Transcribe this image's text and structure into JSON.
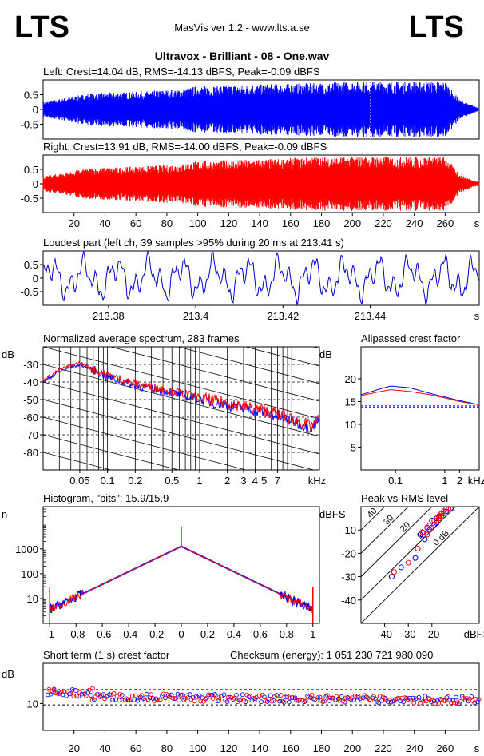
{
  "header": {
    "logo_left": "LTS",
    "logo_right": "LTS",
    "app_title": "MasVis ver 1.2 - www.lts.a.se",
    "file_title": "Ultravox - Brilliant - 08 - One.wav"
  },
  "colors": {
    "left": "#0000ff",
    "right": "#ff0000"
  },
  "chart_data": [
    {
      "id": "wave_left",
      "type": "area",
      "title": "Left: Crest=14.04 dB, RMS=-14.13 dBFS, Peak=-0.09 dBFS",
      "yticks": [
        "0.5",
        "0",
        "-0.5"
      ],
      "ylim": [
        -1,
        1
      ],
      "xlim": [
        0,
        282
      ],
      "series": [
        {
          "color": "#0000ff"
        }
      ],
      "envelope": {
        "x": [
          0,
          10,
          30,
          60,
          90,
          100,
          140,
          180,
          200,
          230,
          260,
          270,
          282
        ],
        "amp": [
          0.25,
          0.35,
          0.55,
          0.6,
          0.7,
          0.8,
          0.85,
          0.9,
          0.95,
          0.95,
          0.95,
          0.3,
          0.05
        ]
      }
    },
    {
      "id": "wave_right",
      "type": "area",
      "title": "Right: Crest=13.91 dB, RMS=-14.00 dBFS, Peak=-0.09 dBFS",
      "yticks": [
        "0.5",
        "0",
        "-0.5"
      ],
      "ylim": [
        -1,
        1
      ],
      "xlim": [
        0,
        282
      ],
      "xticks": [
        "20",
        "40",
        "60",
        "80",
        "100",
        "120",
        "140",
        "160",
        "180",
        "200",
        "220",
        "240",
        "260"
      ],
      "xunit": "s",
      "series": [
        {
          "color": "#ff0000"
        }
      ],
      "envelope": {
        "x": [
          0,
          10,
          30,
          60,
          90,
          100,
          140,
          180,
          200,
          230,
          260,
          270,
          282
        ],
        "amp": [
          0.25,
          0.35,
          0.55,
          0.6,
          0.7,
          0.8,
          0.85,
          0.95,
          0.95,
          0.95,
          0.95,
          0.3,
          0.05
        ]
      }
    },
    {
      "id": "loudest",
      "type": "line",
      "title": "Loudest part (left ch, 39 samples >95% during 20 ms at 213.41 s)",
      "yticks": [
        "0.5",
        "0",
        "-0.5"
      ],
      "ylim": [
        -1,
        1
      ],
      "xlim": [
        213.365,
        213.465
      ],
      "xticks": [
        "213.38",
        "213.4",
        "213.42",
        "213.44"
      ],
      "xunit": "s",
      "series": [
        {
          "color": "#0000cc"
        }
      ]
    },
    {
      "id": "spectrum",
      "type": "line",
      "title": "Normalized average spectrum, 283 frames",
      "ylabel": "dB",
      "yticks": [
        "-30",
        "-40",
        "-50",
        "-60",
        "-70",
        "-80"
      ],
      "ylim": [
        -90,
        -20
      ],
      "xlim": [
        0.02,
        20
      ],
      "xscale": "log",
      "xticks": [
        "0.05",
        "0.1",
        "0.2",
        "0.5",
        "1",
        "2",
        "3",
        "4",
        "5",
        "7"
      ],
      "xunit": "kHz",
      "series": [
        {
          "color": "#0000ff",
          "x": [
            0.02,
            0.03,
            0.05,
            0.07,
            0.1,
            0.2,
            0.5,
            1,
            2,
            5,
            10,
            16,
            20
          ],
          "y": [
            -40,
            -34,
            -30,
            -33,
            -37,
            -42,
            -46,
            -50,
            -53,
            -57,
            -62,
            -66,
            -62
          ]
        },
        {
          "color": "#ff0000",
          "x": [
            0.02,
            0.03,
            0.05,
            0.07,
            0.1,
            0.2,
            0.5,
            1,
            2,
            5,
            10,
            16,
            20
          ],
          "y": [
            -39,
            -33,
            -29,
            -33,
            -36,
            -41,
            -45,
            -49,
            -52,
            -56,
            -61,
            -65,
            -61
          ]
        }
      ]
    },
    {
      "id": "allpass",
      "type": "line",
      "title": "Allpassed crest factor",
      "ylabel": "dB",
      "yticks": [
        "20",
        "15",
        "10",
        "5"
      ],
      "ylim": [
        0,
        27
      ],
      "xlim": [
        0.02,
        5
      ],
      "xscale": "log",
      "xticks": [
        "0.1",
        "1",
        "2"
      ],
      "xunit": "kHz",
      "series": [
        {
          "color": "#0000ff",
          "x": [
            0.02,
            0.05,
            0.08,
            0.2,
            0.5,
            1,
            2,
            5
          ],
          "y": [
            16.5,
            17.8,
            18.4,
            18,
            16.8,
            16,
            15.2,
            14.3
          ]
        },
        {
          "color": "#ff0000",
          "x": [
            0.02,
            0.05,
            0.08,
            0.2,
            0.5,
            1,
            2,
            5
          ],
          "y": [
            16.3,
            17.2,
            17.6,
            17.2,
            16.5,
            15.8,
            15,
            14.3
          ]
        }
      ],
      "ref_lines": [
        {
          "color": "#0000ff",
          "y": 14.04
        },
        {
          "color": "#ff0000",
          "y": 13.91
        }
      ]
    },
    {
      "id": "histogram",
      "type": "line",
      "title": "Histogram, \"bits\": 15.9/15.9",
      "ylabel": "n",
      "yticks": [
        "1000",
        "100",
        "10"
      ],
      "yscale": "log",
      "ylim": [
        1,
        50000
      ],
      "xlim": [
        -1.05,
        1.05
      ],
      "xticks": [
        "-1",
        "-0.8",
        "-0.6",
        "-0.4",
        "-0.2",
        "0",
        "0.2",
        "0.4",
        "0.6",
        "0.8",
        "1"
      ],
      "series": [
        {
          "color": "#0000ff"
        },
        {
          "color": "#ff0000"
        }
      ]
    },
    {
      "id": "peak_rms",
      "type": "scatter",
      "title": "Peak vs RMS level",
      "ylabel": "dBFS",
      "yticks": [
        "-10",
        "-20",
        "-30",
        "-40"
      ],
      "ylim": [
        -50,
        0
      ],
      "xlim": [
        -50,
        0
      ],
      "xticks": [
        "-40",
        "-30",
        "-20"
      ],
      "xunit": "dBFS",
      "diag_labels": [
        "40",
        "30",
        "20",
        "10",
        "0 dB"
      ],
      "series": [
        {
          "color": "#0000ff",
          "points": [
            [
              -25,
              -12
            ],
            [
              -22,
              -9
            ],
            [
              -20,
              -6
            ],
            [
              -18,
              -5
            ],
            [
              -17,
              -4
            ],
            [
              -16,
              -3
            ],
            [
              -15,
              -2
            ],
            [
              -14,
              -2
            ],
            [
              -13,
              -1
            ],
            [
              -12,
              -1
            ],
            [
              -19,
              -8
            ],
            [
              -23,
              -14
            ],
            [
              -27,
              -22
            ],
            [
              -33,
              -26
            ],
            [
              -37,
              -30
            ],
            [
              -21,
              -10
            ],
            [
              -18,
              -7
            ]
          ]
        },
        {
          "color": "#ff0000",
          "points": [
            [
              -24,
              -11
            ],
            [
              -21,
              -8
            ],
            [
              -19,
              -6
            ],
            [
              -17,
              -4
            ],
            [
              -16,
              -3
            ],
            [
              -15,
              -2
            ],
            [
              -14,
              -1
            ],
            [
              -13,
              -1
            ],
            [
              -20,
              -9
            ],
            [
              -22,
              -12
            ],
            [
              -26,
              -18
            ],
            [
              -30,
              -24
            ],
            [
              -36,
              -28
            ],
            [
              -18,
              -6
            ],
            [
              -17,
              -5
            ],
            [
              -16,
              -4
            ],
            [
              -15,
              -3
            ]
          ]
        }
      ]
    },
    {
      "id": "crest_st",
      "type": "scatter",
      "title": "Short term (1 s) crest factor",
      "checksum": "Checksum (energy):  1 051 230 721 980 090",
      "ylabel": "dB",
      "yticks": [
        "10"
      ],
      "ylim": [
        0,
        25
      ],
      "xlim": [
        0,
        282
      ],
      "xticks": [
        "20",
        "40",
        "60",
        "80",
        "100",
        "120",
        "140",
        "160",
        "180",
        "200",
        "220",
        "240",
        "260"
      ],
      "xunit": "s",
      "ref_lines": [
        {
          "y": 15.2
        },
        {
          "y": 9.5
        }
      ],
      "series": [
        {
          "color": "#0000ff"
        },
        {
          "color": "#ff0000"
        }
      ]
    }
  ]
}
